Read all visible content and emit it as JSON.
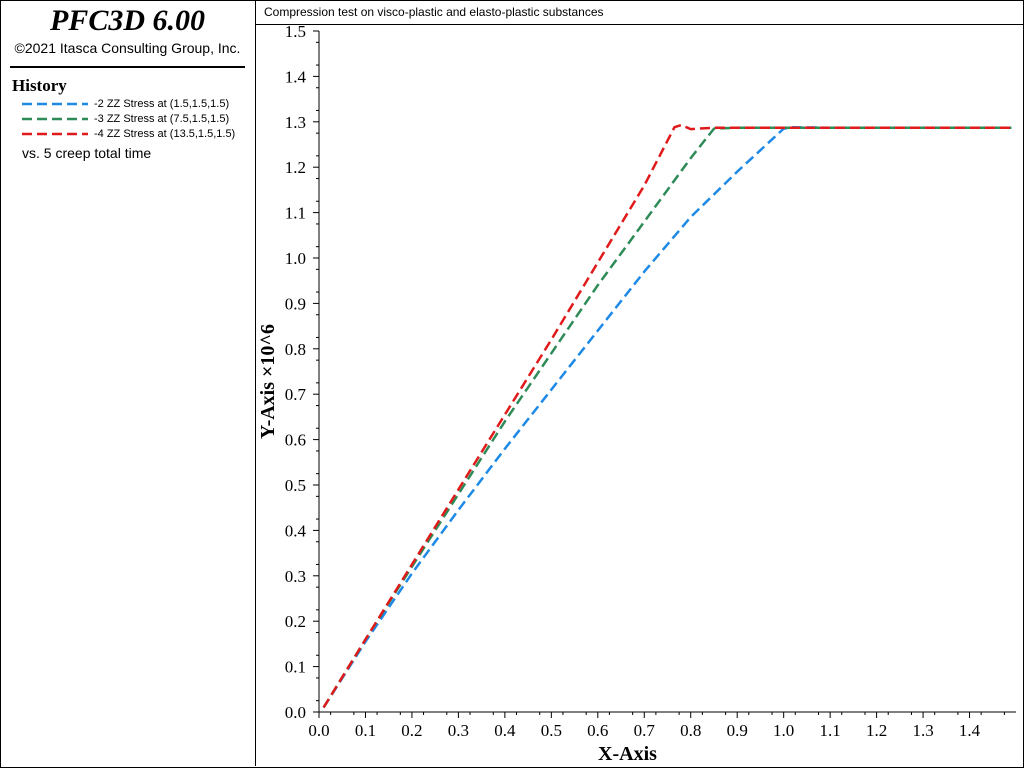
{
  "app": {
    "title": "PFC3D 6.00",
    "copyright": "©2021 Itasca Consulting Group, Inc."
  },
  "legend": {
    "heading": "History",
    "vs_label": "vs. 5 creep total time",
    "entries": [
      {
        "label": "-2 ZZ Stress at (1.5,1.5,1.5)",
        "color": "#1e8ae6"
      },
      {
        "label": "-3 ZZ Stress at (7.5,1.5,1.5)",
        "color": "#2e8b57"
      },
      {
        "label": "-4 ZZ Stress at (13.5,1.5,1.5)",
        "color": "#e01a1a"
      }
    ]
  },
  "plot": {
    "title": "Compression test on visco-plastic and elasto-plastic substances"
  },
  "chart_data": {
    "type": "line",
    "title": "Compression test on visco-plastic and elasto-plastic substances",
    "xlabel": "X-Axis",
    "ylabel": "Y-Axis ×10^6",
    "xlim": [
      0,
      1.5
    ],
    "ylim": [
      0,
      1.5
    ],
    "x_ticks": [
      "0.0",
      "0.1",
      "0.2",
      "0.3",
      "0.4",
      "0.5",
      "0.6",
      "0.7",
      "0.8",
      "0.9",
      "1.0",
      "1.1",
      "1.2",
      "1.3",
      "1.4"
    ],
    "y_ticks": [
      "0.0",
      "0.1",
      "0.2",
      "0.3",
      "0.4",
      "0.5",
      "0.6",
      "0.7",
      "0.8",
      "0.9",
      "1.0",
      "1.1",
      "1.2",
      "1.3",
      "1.4",
      "1.5"
    ],
    "grid": false,
    "line_style": "dashed",
    "series": [
      {
        "name": "-2 ZZ Stress at (1.5,1.5,1.5)",
        "color": "#1e8ae6",
        "x": [
          0.01,
          0.1,
          0.2,
          0.3,
          0.4,
          0.5,
          0.6,
          0.7,
          0.8,
          0.9,
          1.0,
          1.02,
          1.1,
          1.2,
          1.3,
          1.4,
          1.49
        ],
        "y": [
          0.01,
          0.155,
          0.305,
          0.445,
          0.58,
          0.71,
          0.84,
          0.97,
          1.09,
          1.19,
          1.285,
          1.288,
          1.287,
          1.287,
          1.287,
          1.287,
          1.287
        ]
      },
      {
        "name": "-3 ZZ Stress at (7.5,1.5,1.5)",
        "color": "#2e8b57",
        "x": [
          0.01,
          0.1,
          0.2,
          0.3,
          0.4,
          0.5,
          0.6,
          0.7,
          0.8,
          0.85,
          0.9,
          1.0,
          1.1,
          1.2,
          1.3,
          1.4,
          1.49
        ],
        "y": [
          0.01,
          0.16,
          0.32,
          0.48,
          0.64,
          0.79,
          0.94,
          1.08,
          1.22,
          1.285,
          1.287,
          1.287,
          1.287,
          1.287,
          1.287,
          1.287,
          1.287
        ]
      },
      {
        "name": "-4 ZZ Stress at (13.5,1.5,1.5)",
        "color": "#e01a1a",
        "x": [
          0.01,
          0.1,
          0.2,
          0.3,
          0.4,
          0.5,
          0.6,
          0.7,
          0.765,
          0.78,
          0.8,
          0.85,
          0.9,
          1.0,
          1.1,
          1.2,
          1.3,
          1.4,
          1.49
        ],
        "y": [
          0.01,
          0.16,
          0.325,
          0.49,
          0.655,
          0.82,
          0.99,
          1.16,
          1.288,
          1.293,
          1.284,
          1.287,
          1.287,
          1.287,
          1.287,
          1.287,
          1.287,
          1.287,
          1.287
        ]
      }
    ]
  }
}
